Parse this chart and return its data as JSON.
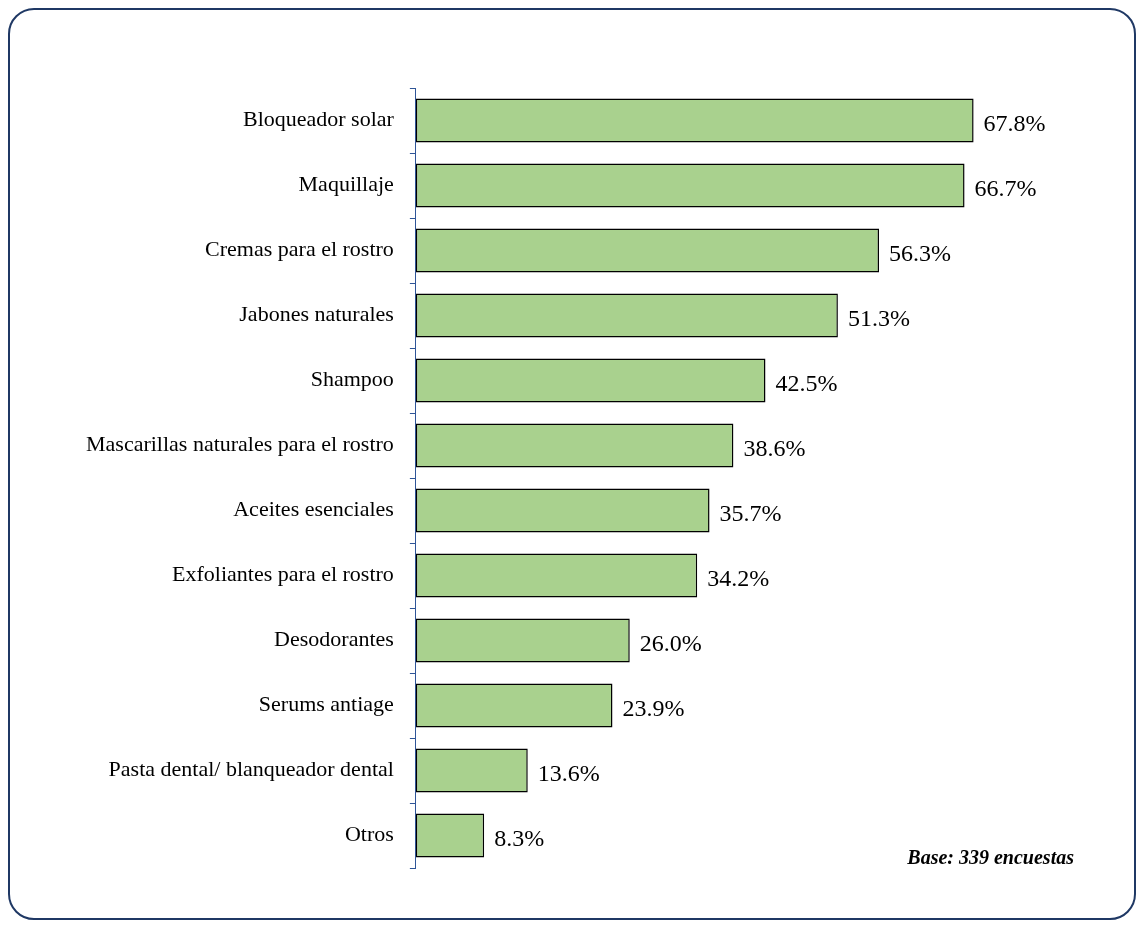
{
  "chart_data": {
    "type": "bar",
    "orientation": "horizontal",
    "categories": [
      "Bloqueador solar",
      "Maquillaje",
      "Cremas para el rostro",
      "Jabones naturales",
      "Shampoo",
      "Mascarillas naturales para el rostro",
      "Aceites esenciales",
      "Exfoliantes para el rostro",
      "Desodorantes",
      "Serums antiage",
      "Pasta dental/ blanqueador dental",
      "Otros"
    ],
    "values": [
      67.8,
      66.7,
      56.3,
      51.3,
      42.5,
      38.6,
      35.7,
      34.2,
      26.0,
      23.9,
      13.6,
      8.3
    ],
    "value_labels": [
      "67.8%",
      "66.7%",
      "56.3%",
      "51.3%",
      "42.5%",
      "38.6%",
      "35.7%",
      "34.2%",
      "26.0%",
      "23.9%",
      "13.6%",
      "8.3%"
    ],
    "color": "#a9d18e",
    "annotations": [
      "Base: 339 encuestas"
    ]
  }
}
